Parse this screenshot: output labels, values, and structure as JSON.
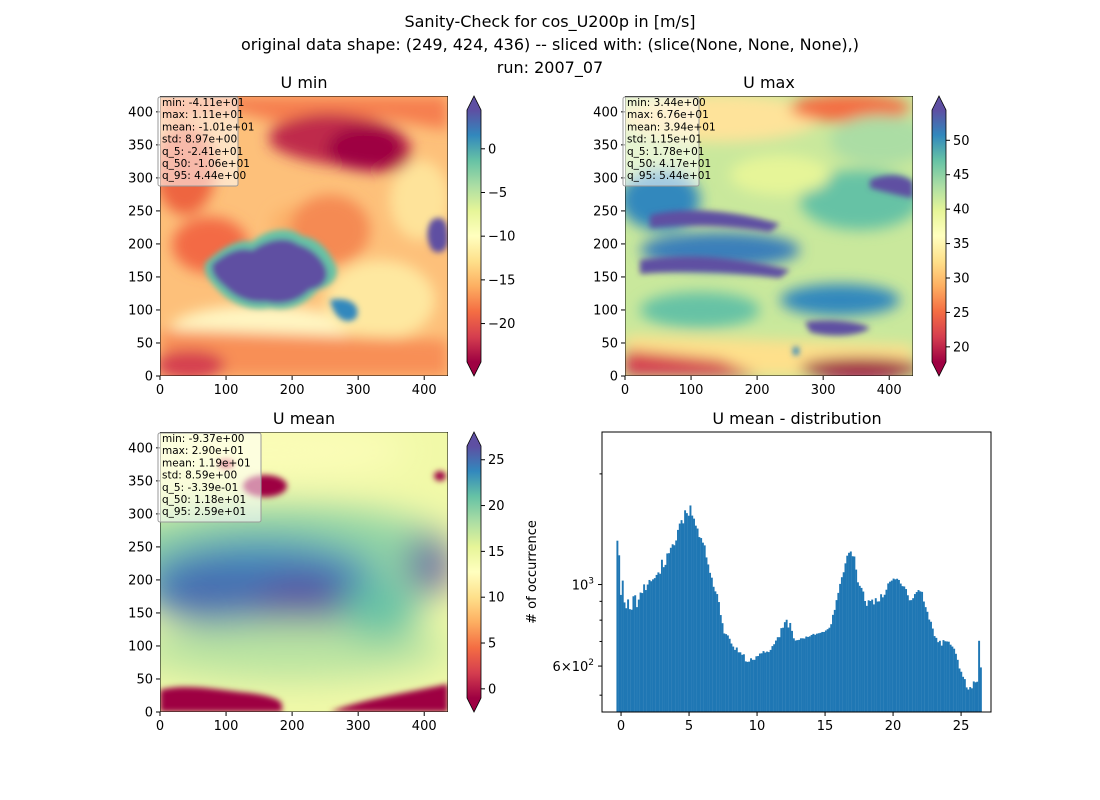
{
  "figure": {
    "title_lines": [
      "Sanity-Check for cos_U200p in [m/s]",
      "original data shape: (249, 424, 436) -- sliced with: (slice(None, None, None),)",
      "run: 2007_07"
    ]
  },
  "chart_data": [
    {
      "type": "heatmap",
      "title": "U min",
      "xlim": [
        0,
        436
      ],
      "ylim": [
        0,
        424
      ],
      "xticks": [
        0,
        100,
        200,
        300,
        400
      ],
      "yticks": [
        0,
        50,
        100,
        150,
        200,
        250,
        300,
        350,
        400
      ],
      "colormap": "Spectral",
      "colorbar": {
        "range": [
          -24.4,
          4.44
        ],
        "ticks": [
          0,
          -5,
          -10,
          -15,
          -20
        ],
        "extend": "both"
      },
      "stats": [
        "min: -4.11e+01",
        "max: 1.11e+01",
        "mean: -1.01e+01",
        "std: 8.97e+00",
        "q_5: -2.41e+01",
        "q_50: -1.06e+01",
        "q_95: 4.44e+00"
      ]
    },
    {
      "type": "heatmap",
      "title": "U max",
      "xlim": [
        0,
        436
      ],
      "ylim": [
        0,
        424
      ],
      "xticks": [
        0,
        100,
        200,
        300,
        400
      ],
      "yticks": [
        0,
        50,
        100,
        150,
        200,
        250,
        300,
        350,
        400
      ],
      "colormap": "Spectral",
      "colorbar": {
        "range": [
          17.8,
          54.4
        ],
        "ticks": [
          50,
          45,
          40,
          35,
          30,
          25,
          20
        ],
        "extend": "both"
      },
      "stats": [
        "min: 3.44e+00",
        "max: 6.76e+01",
        "mean: 3.94e+01",
        "std: 1.15e+01",
        "q_5: 1.78e+01",
        "q_50: 4.17e+01",
        "q_95: 5.44e+01"
      ]
    },
    {
      "type": "heatmap",
      "title": "U mean",
      "xlim": [
        0,
        436
      ],
      "ylim": [
        0,
        424
      ],
      "xticks": [
        0,
        100,
        200,
        300,
        400
      ],
      "yticks": [
        0,
        50,
        100,
        150,
        200,
        250,
        300,
        350,
        400
      ],
      "colormap": "Spectral",
      "colorbar": {
        "range": [
          -1.0,
          26.5
        ],
        "ticks": [
          25,
          20,
          15,
          10,
          5,
          0
        ],
        "extend": "both"
      },
      "stats": [
        "min: -9.37e+00",
        "max: 2.90e+01",
        "mean: 1.19e+01",
        "std: 8.59e+00",
        "q_5: -3.39e-01",
        "q_50: 1.18e+01",
        "q_95: 2.59e+01"
      ]
    },
    {
      "type": "bar",
      "title": "U mean - distribution",
      "ylabel": "# of occurrence",
      "yscale": "log",
      "xlim": [
        -1.4,
        27.2
      ],
      "ylim": [
        450,
        2600
      ],
      "xticks": [
        0,
        5,
        10,
        15,
        20,
        25
      ],
      "ytick_labels": [
        {
          "value": 1000,
          "base": "10",
          "exp": "3"
        },
        {
          "value": 600,
          "base": "6×10",
          "exp": "2"
        }
      ],
      "minor_yticks": [
        500,
        700,
        800,
        900,
        2000
      ],
      "bin_start": -0.339,
      "bin_width": 0.131,
      "color": "#1f77b4",
      "values": [
        1316,
        1201,
        937,
        1025,
        894,
        862,
        911,
        857,
        854,
        929,
        935,
        868,
        910,
        951,
        948,
        1001,
        966,
        1000,
        1029,
        1021,
        1033,
        1041,
        1062,
        1079,
        1070,
        1168,
        1115,
        1131,
        1215,
        1217,
        1259,
        1287,
        1279,
        1318,
        1408,
        1465,
        1497,
        1467,
        1592,
        1564,
        1539,
        1641,
        1540,
        1511,
        1446,
        1420,
        1346,
        1338,
        1300,
        1278,
        1185,
        1134,
        1076,
        1044,
        986,
        958,
        942,
        896,
        826,
        785,
        736,
        733,
        727,
        712,
        691,
        678,
        664,
        674,
        654,
        654,
        644,
        646,
        618,
        616,
        617,
        630,
        624,
        624,
        638,
        639,
        649,
        650,
        659,
        653,
        657,
        655,
        664,
        680,
        688,
        704,
        719,
        719,
        761,
        763,
        790,
        802,
        764,
        786,
        748,
        714,
        704,
        706,
        707,
        714,
        714,
        713,
        722,
        720,
        723,
        729,
        734,
        730,
        735,
        737,
        739,
        743,
        743,
        750,
        756,
        763,
        780,
        827,
        853,
        907,
        949,
        1004,
        1047,
        1080,
        1142,
        1198,
        1220,
        1230,
        1194,
        1192,
        1098,
        1014,
        992,
        979,
        957,
        902,
        875,
        906,
        902,
        910,
        883,
        918,
        899,
        900,
        941,
        923,
        938,
        968,
        1007,
        1018,
        1025,
        1038,
        1033,
        1037,
        1029,
        1006,
        990,
        988,
        972,
        935,
        906,
        907,
        918,
        942,
        954,
        966,
        958,
        955,
        899,
        868,
        843,
        803,
        792,
        759,
        724,
        716,
        697,
        703,
        682,
        706,
        701,
        700,
        699,
        686,
        678,
        669,
        648,
        624,
        591,
        579,
        561,
        553,
        525,
        518,
        526,
        522,
        545,
        542,
        544,
        703,
        595
      ]
    }
  ]
}
